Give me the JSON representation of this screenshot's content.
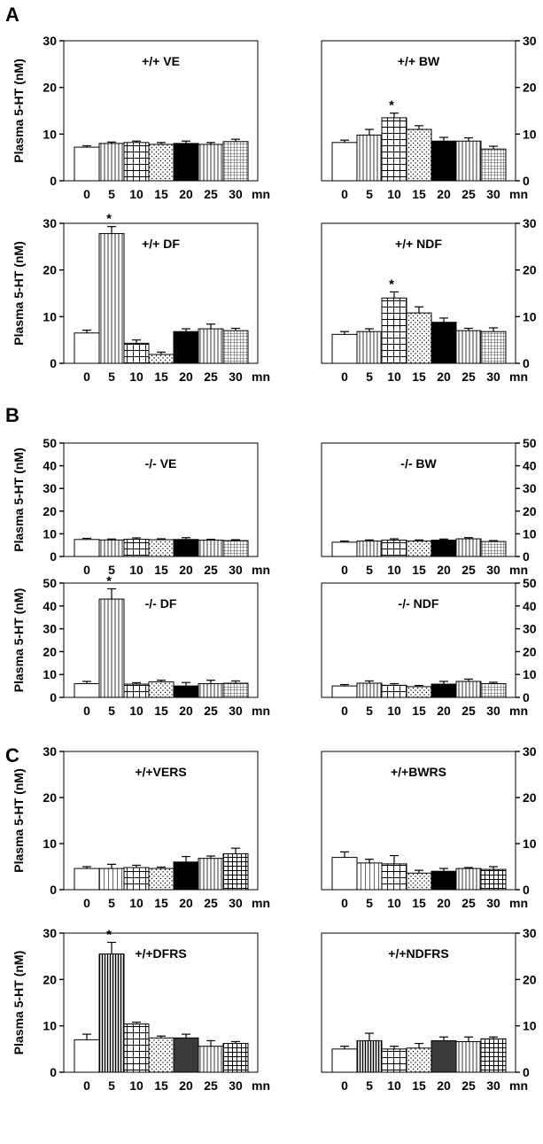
{
  "chart_data": {
    "type": "bar",
    "panel_labels": [
      "A",
      "B",
      "C"
    ],
    "xunit": "mn",
    "ylabel": "Plasma 5-HT (nM)",
    "colors": {
      "bar_edge": "#000000",
      "fill_white": "#ffffff",
      "fill_black": "#000000",
      "fill_dark": "#3a3a3a"
    },
    "charts": [
      {
        "panel": "A",
        "title": "+/+ VE",
        "categories": [
          "0",
          "5",
          "10",
          "15",
          "20",
          "25",
          "30"
        ],
        "ylim": [
          0,
          30
        ],
        "yticks": [
          0,
          10,
          20,
          30
        ],
        "values": [
          7.2,
          8.0,
          8.2,
          7.8,
          8.0,
          7.8,
          8.4
        ],
        "errors": [
          0.3,
          0.3,
          0.3,
          0.4,
          0.5,
          0.4,
          0.5
        ],
        "patterns": [
          "white",
          "vlines",
          "grid",
          "dots",
          "black",
          "vlines",
          "finegrid"
        ],
        "significant": [],
        "axis_side": "left"
      },
      {
        "panel": "A",
        "title": "+/+ BW",
        "categories": [
          "0",
          "5",
          "10",
          "15",
          "20",
          "25",
          "30"
        ],
        "ylim": [
          0,
          30
        ],
        "yticks": [
          0,
          10,
          20,
          30
        ],
        "values": [
          8.2,
          9.8,
          13.5,
          11.0,
          8.5,
          8.5,
          6.8
        ],
        "errors": [
          0.5,
          1.2,
          1.0,
          0.8,
          0.8,
          0.7,
          0.6
        ],
        "patterns": [
          "white",
          "vlines",
          "grid",
          "dots",
          "black",
          "vlines",
          "finegrid"
        ],
        "significant": [
          2
        ],
        "axis_side": "right"
      },
      {
        "panel": "A",
        "title": "+/+ DF",
        "categories": [
          "0",
          "5",
          "10",
          "15",
          "20",
          "25",
          "30"
        ],
        "ylim": [
          0,
          30
        ],
        "yticks": [
          0,
          10,
          20,
          30
        ],
        "values": [
          6.5,
          27.8,
          4.3,
          1.9,
          6.8,
          7.4,
          7.0
        ],
        "errors": [
          0.6,
          1.5,
          0.7,
          0.5,
          0.6,
          1.0,
          0.5
        ],
        "patterns": [
          "white",
          "vlines",
          "grid",
          "dots",
          "black",
          "vlines",
          "finegrid"
        ],
        "significant": [
          1
        ],
        "axis_side": "left"
      },
      {
        "panel": "A",
        "title": "+/+ NDF",
        "categories": [
          "0",
          "5",
          "10",
          "15",
          "20",
          "25",
          "30"
        ],
        "ylim": [
          0,
          30
        ],
        "yticks": [
          0,
          10,
          20,
          30
        ],
        "values": [
          6.2,
          6.8,
          14.0,
          10.8,
          8.8,
          7.0,
          6.8
        ],
        "errors": [
          0.6,
          0.6,
          1.3,
          1.3,
          0.9,
          0.5,
          0.8
        ],
        "patterns": [
          "white",
          "vlines",
          "grid",
          "dots",
          "black",
          "vlines",
          "finegrid"
        ],
        "significant": [
          2
        ],
        "axis_side": "right"
      },
      {
        "panel": "B",
        "title": "-/- VE",
        "categories": [
          "0",
          "5",
          "10",
          "15",
          "20",
          "25",
          "30"
        ],
        "ylim": [
          0,
          50
        ],
        "yticks": [
          0,
          10,
          20,
          30,
          40,
          50
        ],
        "values": [
          7.5,
          7.3,
          7.6,
          7.4,
          7.5,
          7.2,
          7.0
        ],
        "errors": [
          0.5,
          0.4,
          0.6,
          0.4,
          0.8,
          0.4,
          0.4
        ],
        "patterns": [
          "white",
          "vlines",
          "grid",
          "dots",
          "black",
          "vlines",
          "finegrid"
        ],
        "significant": [],
        "axis_side": "left"
      },
      {
        "panel": "B",
        "title": "-/- BW",
        "categories": [
          "0",
          "5",
          "10",
          "15",
          "20",
          "25",
          "30"
        ],
        "ylim": [
          0,
          50
        ],
        "yticks": [
          0,
          10,
          20,
          30,
          40,
          50
        ],
        "values": [
          6.3,
          6.8,
          7.2,
          6.8,
          7.2,
          7.8,
          6.6
        ],
        "errors": [
          0.5,
          0.5,
          0.6,
          0.5,
          0.5,
          0.5,
          0.4
        ],
        "patterns": [
          "white",
          "vlines",
          "grid",
          "dots",
          "black",
          "vlines",
          "finegrid"
        ],
        "significant": [],
        "axis_side": "right"
      },
      {
        "panel": "B",
        "title": "-/- DF",
        "categories": [
          "0",
          "5",
          "10",
          "15",
          "20",
          "25",
          "30"
        ],
        "ylim": [
          0,
          50
        ],
        "yticks": [
          0,
          10,
          20,
          30,
          40,
          50
        ],
        "values": [
          6.0,
          43.0,
          5.8,
          6.8,
          5.0,
          6.0,
          6.2
        ],
        "errors": [
          1.0,
          4.5,
          0.6,
          0.7,
          1.5,
          1.5,
          1.0
        ],
        "patterns": [
          "white",
          "vlines",
          "grid",
          "dots",
          "black",
          "vlines",
          "finegrid"
        ],
        "significant": [
          1
        ],
        "axis_side": "left"
      },
      {
        "panel": "B",
        "title": "-/- NDF",
        "categories": [
          "0",
          "5",
          "10",
          "15",
          "20",
          "25",
          "30"
        ],
        "ylim": [
          0,
          50
        ],
        "yticks": [
          0,
          10,
          20,
          30,
          40,
          50
        ],
        "values": [
          5.0,
          6.2,
          5.3,
          4.7,
          5.8,
          7.0,
          6.0
        ],
        "errors": [
          0.6,
          1.0,
          0.7,
          0.5,
          1.2,
          1.0,
          0.6
        ],
        "patterns": [
          "white",
          "vlines",
          "grid",
          "dots",
          "black",
          "vlines",
          "finegrid"
        ],
        "significant": [],
        "axis_side": "right"
      },
      {
        "panel": "C",
        "title": "+/+VERS",
        "categories": [
          "0",
          "5",
          "10",
          "15",
          "20",
          "25",
          "30"
        ],
        "ylim": [
          0,
          30
        ],
        "yticks": [
          0,
          10,
          20,
          30
        ],
        "values": [
          4.6,
          4.6,
          4.8,
          4.6,
          6.0,
          6.8,
          7.8
        ],
        "errors": [
          0.4,
          0.9,
          0.5,
          0.3,
          1.2,
          0.5,
          1.2
        ],
        "patterns": [
          "white",
          "thinvlines",
          "grid",
          "dots",
          "black",
          "vlines",
          "heavygrid"
        ],
        "significant": [],
        "axis_side": "left"
      },
      {
        "panel": "C",
        "title": "+/+BWRS",
        "categories": [
          "0",
          "5",
          "10",
          "15",
          "20",
          "25",
          "30"
        ],
        "ylim": [
          0,
          30
        ],
        "yticks": [
          0,
          10,
          20,
          30
        ],
        "values": [
          7.0,
          5.8,
          5.6,
          3.6,
          4.0,
          4.6,
          4.4
        ],
        "errors": [
          1.2,
          0.8,
          1.8,
          0.6,
          0.6,
          0.2,
          0.6
        ],
        "patterns": [
          "white",
          "thinvlines",
          "grid",
          "dots",
          "black",
          "vlines",
          "heavygrid"
        ],
        "significant": [],
        "axis_side": "right"
      },
      {
        "panel": "C",
        "title": "+/+DFRS",
        "categories": [
          "0",
          "5",
          "10",
          "15",
          "20",
          "25",
          "30"
        ],
        "ylim": [
          0,
          30
        ],
        "yticks": [
          0,
          10,
          20,
          30
        ],
        "values": [
          7.0,
          25.5,
          10.4,
          7.4,
          7.4,
          5.6,
          6.2
        ],
        "errors": [
          1.2,
          2.5,
          0.4,
          0.4,
          0.8,
          1.2,
          0.4
        ],
        "patterns": [
          "white",
          "darkvlines",
          "grid",
          "dots",
          "dark",
          "vlines",
          "heavygrid"
        ],
        "significant": [
          1
        ],
        "axis_side": "left"
      },
      {
        "panel": "C",
        "title": "+/+NDFRS",
        "categories": [
          "0",
          "5",
          "10",
          "15",
          "20",
          "25",
          "30"
        ],
        "ylim": [
          0,
          30
        ],
        "yticks": [
          0,
          10,
          20,
          30
        ],
        "values": [
          5.0,
          6.8,
          5.0,
          5.2,
          6.8,
          6.6,
          7.2
        ],
        "errors": [
          0.6,
          1.6,
          0.6,
          1.0,
          0.8,
          1.0,
          0.4
        ],
        "patterns": [
          "white",
          "darkvlines",
          "grid",
          "dots",
          "dark",
          "vlines",
          "heavygrid"
        ],
        "significant": [],
        "axis_side": "right"
      }
    ]
  }
}
